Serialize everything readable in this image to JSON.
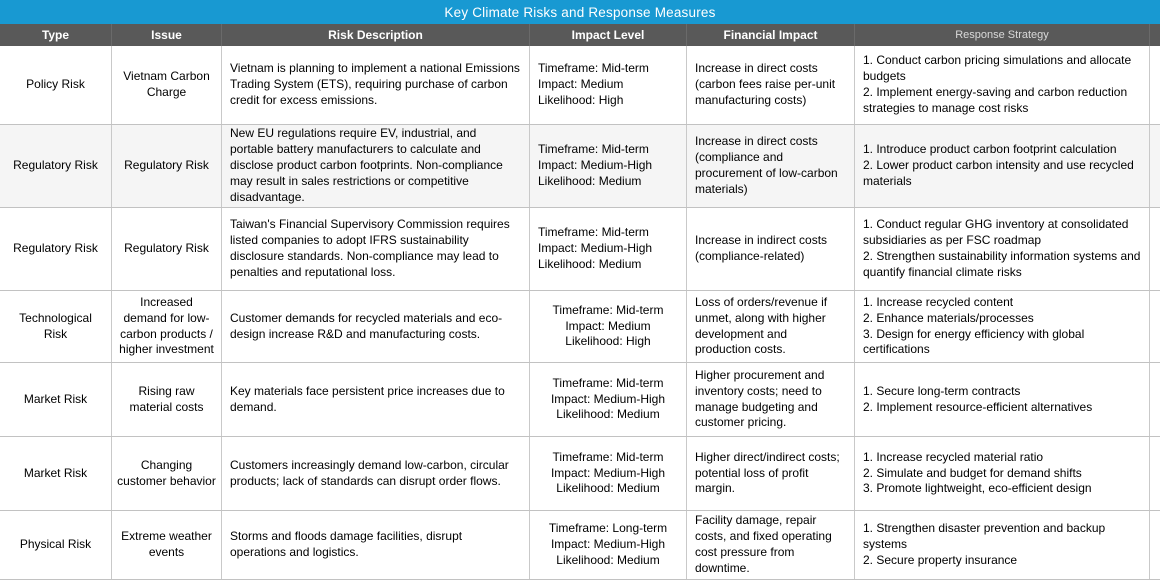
{
  "title": "Key Climate Risks and Response Measures",
  "colors": {
    "accent": "#1899d2",
    "header_bg": "#595959",
    "grid": "#c9c9c9"
  },
  "table": {
    "columns": [
      "Type",
      "Issue",
      "Risk Description",
      "Impact  Level",
      "Financial Impact",
      "Response Strategy"
    ],
    "rows": [
      {
        "type": "Policy Risk",
        "issue": "Vietnam  Carbon Charge",
        "description": "Vietnam is planning to implement a national Emissions Trading System (ETS), requiring purchase of carbon credit for excess emissions.",
        "impact": [
          "Timeframe: Mid-term",
          "Impact: Medium",
          "Likelihood: High"
        ],
        "financial": "Increase in direct costs (carbon fees raise per-unit manufacturing costs)",
        "strategy": [
          "1. Conduct carbon pricing simulations and allocate budgets",
          "2. Implement  energy-saving and carbon reduction strategies to manage cost risks"
        ]
      },
      {
        "type": "Regulatory Risk",
        "issue": "Regulatory Risk",
        "description": "New EU regulations require EV, industrial, and portable battery manufacturers to calculate and disclose product carbon footprints. Non-compliance may result in sales restrictions or competitive disadvantage.",
        "impact": [
          "Timeframe: Mid-term",
          "Impact: Medium-High",
          "Likelihood: Medium"
        ],
        "financial": "Increase in direct costs (compliance and procurement of low-carbon materials)",
        "strategy": [
          "1. Introduce product carbon footprint calculation",
          "2. Lower product carbon intensity and use recycled materials"
        ]
      },
      {
        "type": "Regulatory Risk",
        "issue": "Regulatory Risk",
        "description": "Taiwan's Financial Supervisory Commission requires listed companies to adopt IFRS sustainability disclosure standards. Non-compliance may lead to penalties and reputational loss.",
        "impact": [
          "Timeframe: Mid-term",
          "Impact: Medium-High",
          "Likelihood: Medium"
        ],
        "financial": "Increase in indirect costs (compliance-related)",
        "strategy": [
          "1. Conduct regular GHG inventory at consolidated subsidiaries as per FSC roadmap",
          "2. Strengthen sustainability information systems and quantify financial climate risks"
        ]
      },
      {
        "type": "Technological Risk",
        "issue": "Increased demand for low-carbon products / higher investment",
        "description": "Customer demands for recycled materials and eco-design increase R&D and manufacturing costs.",
        "impact": [
          "Timeframe: Mid-term",
          "Impact: Medium",
          "Likelihood: High"
        ],
        "financial": "Loss of orders/revenue if unmet, along with higher development and production costs.",
        "strategy": [
          "1. Increase recycled content",
          "2. Enhance materials/processes",
          "3. Design for energy efficiency with global certifications"
        ]
      },
      {
        "type": "Market Risk",
        "issue": "Rising raw material costs",
        "description": "Key materials face persistent price increases due to demand.",
        "impact": [
          "Timeframe: Mid-term",
          "Impact: Medium-High",
          "Likelihood: Medium"
        ],
        "financial": "Higher procurement and inventory costs; need to manage budgeting and customer pricing.",
        "strategy": [
          "1. Secure long-term contracts",
          "2. Implement  resource-efficient alternatives"
        ]
      },
      {
        "type": "Market Risk",
        "issue": "Changing customer behavior",
        "description": "Customers increasingly demand low-carbon, circular products; lack of standards can disrupt order flows.",
        "impact": [
          "Timeframe: Mid-term",
          "Impact: Medium-High",
          "Likelihood: Medium"
        ],
        "financial": "Higher direct/indirect costs; potential loss of profit margin.",
        "strategy": [
          "1. Increase recycled material ratio",
          "2. Simulate and budget for demand shifts",
          "3. Promote lightweight, eco-efficient design"
        ]
      },
      {
        "type": "Physical Risk",
        "issue": "Extreme weather events",
        "description": "Storms and floods damage facilities, disrupt operations and logistics.",
        "impact": [
          "Timeframe: Long-term",
          "Impact: Medium-High",
          "Likelihood: Medium"
        ],
        "financial": "Facility damage, repair costs, and fixed operating cost pressure from downtime.",
        "strategy": [
          "1. Strengthen disaster prevention and backup systems",
          "2. Secure property insurance"
        ]
      }
    ]
  }
}
